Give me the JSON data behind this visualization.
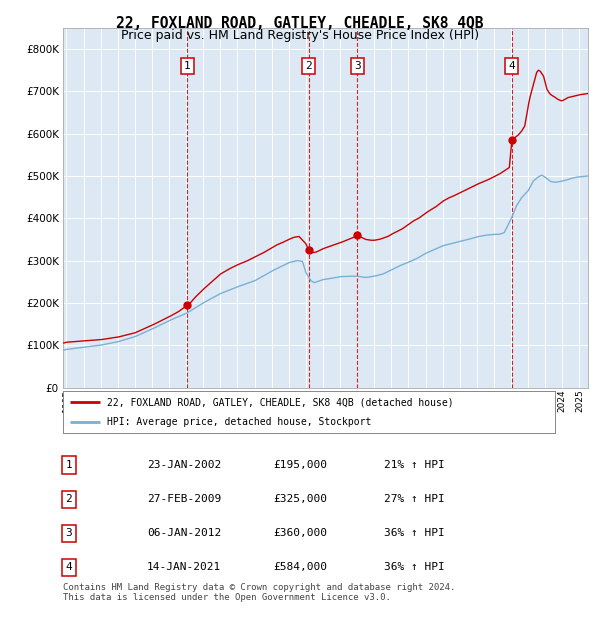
{
  "title": "22, FOXLAND ROAD, GATLEY, CHEADLE, SK8 4QB",
  "subtitle": "Price paid vs. HM Land Registry's House Price Index (HPI)",
  "title_fontsize": 10.5,
  "subtitle_fontsize": 9,
  "background_color": "#dce9f5",
  "grid_color": "#ffffff",
  "sale_color": "#cc0000",
  "hpi_color": "#7ab0d4",
  "purchases": [
    {
      "date_num": 2002.07,
      "price": 195000,
      "label": "1"
    },
    {
      "date_num": 2009.16,
      "price": 325000,
      "label": "2"
    },
    {
      "date_num": 2012.02,
      "price": 360000,
      "label": "3"
    },
    {
      "date_num": 2021.04,
      "price": 584000,
      "label": "4"
    }
  ],
  "legend_property_label": "22, FOXLAND ROAD, GATLEY, CHEADLE, SK8 4QB (detached house)",
  "legend_hpi_label": "HPI: Average price, detached house, Stockport",
  "table_rows": [
    {
      "num": "1",
      "date": "23-JAN-2002",
      "price": "£195,000",
      "hpi": "21% ↑ HPI"
    },
    {
      "num": "2",
      "date": "27-FEB-2009",
      "price": "£325,000",
      "hpi": "27% ↑ HPI"
    },
    {
      "num": "3",
      "date": "06-JAN-2012",
      "price": "£360,000",
      "hpi": "36% ↑ HPI"
    },
    {
      "num": "4",
      "date": "14-JAN-2021",
      "price": "£584,000",
      "hpi": "36% ↑ HPI"
    }
  ],
  "footnote": "Contains HM Land Registry data © Crown copyright and database right 2024.\nThis data is licensed under the Open Government Licence v3.0.",
  "ylim": [
    0,
    850000
  ],
  "xlim_start": 1994.8,
  "xlim_end": 2025.5,
  "hpi_curve": [
    [
      1994.8,
      88000
    ],
    [
      1995,
      90000
    ],
    [
      1996,
      95000
    ],
    [
      1997,
      100000
    ],
    [
      1998,
      108000
    ],
    [
      1999,
      120000
    ],
    [
      2000,
      138000
    ],
    [
      2001,
      158000
    ],
    [
      2002,
      175000
    ],
    [
      2003,
      200000
    ],
    [
      2004,
      222000
    ],
    [
      2005,
      238000
    ],
    [
      2006,
      252000
    ],
    [
      2007,
      275000
    ],
    [
      2007.5,
      285000
    ],
    [
      2008.0,
      295000
    ],
    [
      2008.5,
      300000
    ],
    [
      2008.8,
      298000
    ],
    [
      2009.0,
      272000
    ],
    [
      2009.3,
      252000
    ],
    [
      2009.5,
      248000
    ],
    [
      2009.8,
      252000
    ],
    [
      2010.0,
      255000
    ],
    [
      2010.5,
      258000
    ],
    [
      2011,
      262000
    ],
    [
      2011.5,
      263000
    ],
    [
      2012,
      263000
    ],
    [
      2012.5,
      260000
    ],
    [
      2013,
      263000
    ],
    [
      2013.5,
      268000
    ],
    [
      2014,
      278000
    ],
    [
      2014.5,
      288000
    ],
    [
      2015,
      296000
    ],
    [
      2015.5,
      305000
    ],
    [
      2016,
      317000
    ],
    [
      2016.5,
      326000
    ],
    [
      2017,
      335000
    ],
    [
      2017.5,
      340000
    ],
    [
      2018,
      345000
    ],
    [
      2018.5,
      350000
    ],
    [
      2019,
      356000
    ],
    [
      2019.5,
      360000
    ],
    [
      2020,
      362000
    ],
    [
      2020.3,
      362000
    ],
    [
      2020.6,
      366000
    ],
    [
      2021.0,
      398000
    ],
    [
      2021.3,
      428000
    ],
    [
      2021.6,
      448000
    ],
    [
      2022.0,
      465000
    ],
    [
      2022.3,
      488000
    ],
    [
      2022.6,
      498000
    ],
    [
      2022.8,
      502000
    ],
    [
      2023.0,
      497000
    ],
    [
      2023.3,
      487000
    ],
    [
      2023.6,
      485000
    ],
    [
      2023.9,
      487000
    ],
    [
      2024.2,
      490000
    ],
    [
      2024.5,
      494000
    ],
    [
      2024.8,
      497000
    ],
    [
      2025.0,
      498000
    ],
    [
      2025.5,
      500000
    ]
  ],
  "prop_curve": [
    [
      1994.8,
      105000
    ],
    [
      1995,
      107000
    ],
    [
      1996,
      110000
    ],
    [
      1997,
      113000
    ],
    [
      1998,
      119000
    ],
    [
      1999,
      129000
    ],
    [
      2000,
      147000
    ],
    [
      2001,
      167000
    ],
    [
      2001.5,
      178000
    ],
    [
      2002.0,
      192000
    ],
    [
      2002.07,
      195000
    ],
    [
      2002.2,
      198000
    ],
    [
      2002.5,
      212000
    ],
    [
      2003,
      232000
    ],
    [
      2003.5,
      250000
    ],
    [
      2004,
      268000
    ],
    [
      2004.5,
      280000
    ],
    [
      2005,
      290000
    ],
    [
      2005.5,
      298000
    ],
    [
      2006,
      308000
    ],
    [
      2006.5,
      318000
    ],
    [
      2007,
      330000
    ],
    [
      2007.3,
      337000
    ],
    [
      2007.6,
      342000
    ],
    [
      2008.0,
      350000
    ],
    [
      2008.3,
      355000
    ],
    [
      2008.6,
      357000
    ],
    [
      2009.0,
      340000
    ],
    [
      2009.16,
      325000
    ],
    [
      2009.3,
      318000
    ],
    [
      2009.6,
      320000
    ],
    [
      2010.0,
      328000
    ],
    [
      2010.5,
      335000
    ],
    [
      2011,
      342000
    ],
    [
      2011.5,
      350000
    ],
    [
      2011.8,
      355000
    ],
    [
      2012.02,
      360000
    ],
    [
      2012.2,
      356000
    ],
    [
      2012.5,
      350000
    ],
    [
      2012.8,
      348000
    ],
    [
      2013.0,
      348000
    ],
    [
      2013.3,
      350000
    ],
    [
      2013.5,
      353000
    ],
    [
      2013.8,
      357000
    ],
    [
      2014,
      362000
    ],
    [
      2014.3,
      368000
    ],
    [
      2014.6,
      374000
    ],
    [
      2015,
      385000
    ],
    [
      2015.3,
      394000
    ],
    [
      2015.6,
      400000
    ],
    [
      2016.0,
      412000
    ],
    [
      2016.3,
      420000
    ],
    [
      2016.6,
      427000
    ],
    [
      2017.0,
      440000
    ],
    [
      2017.3,
      447000
    ],
    [
      2017.6,
      452000
    ],
    [
      2018.0,
      460000
    ],
    [
      2018.3,
      466000
    ],
    [
      2018.6,
      472000
    ],
    [
      2019.0,
      480000
    ],
    [
      2019.3,
      485000
    ],
    [
      2019.6,
      490000
    ],
    [
      2020.0,
      498000
    ],
    [
      2020.3,
      504000
    ],
    [
      2020.6,
      512000
    ],
    [
      2020.9,
      520000
    ],
    [
      2021.04,
      584000
    ],
    [
      2021.2,
      590000
    ],
    [
      2021.4,
      596000
    ],
    [
      2021.6,
      605000
    ],
    [
      2021.8,
      618000
    ],
    [
      2022.0,
      665000
    ],
    [
      2022.1,
      685000
    ],
    [
      2022.2,
      700000
    ],
    [
      2022.3,
      715000
    ],
    [
      2022.4,
      730000
    ],
    [
      2022.5,
      745000
    ],
    [
      2022.6,
      750000
    ],
    [
      2022.7,
      748000
    ],
    [
      2022.8,
      742000
    ],
    [
      2022.9,
      736000
    ],
    [
      2023.0,
      720000
    ],
    [
      2023.1,
      705000
    ],
    [
      2023.2,
      698000
    ],
    [
      2023.3,
      693000
    ],
    [
      2023.4,
      690000
    ],
    [
      2023.5,
      688000
    ],
    [
      2023.6,
      685000
    ],
    [
      2023.7,
      682000
    ],
    [
      2023.8,
      680000
    ],
    [
      2023.9,
      678000
    ],
    [
      2024.0,
      678000
    ],
    [
      2024.1,
      680000
    ],
    [
      2024.2,
      682000
    ],
    [
      2024.3,
      685000
    ],
    [
      2024.4,
      686000
    ],
    [
      2024.5,
      687000
    ],
    [
      2024.6,
      688000
    ],
    [
      2024.8,
      690000
    ],
    [
      2025.0,
      692000
    ],
    [
      2025.2,
      693000
    ],
    [
      2025.5,
      695000
    ]
  ]
}
